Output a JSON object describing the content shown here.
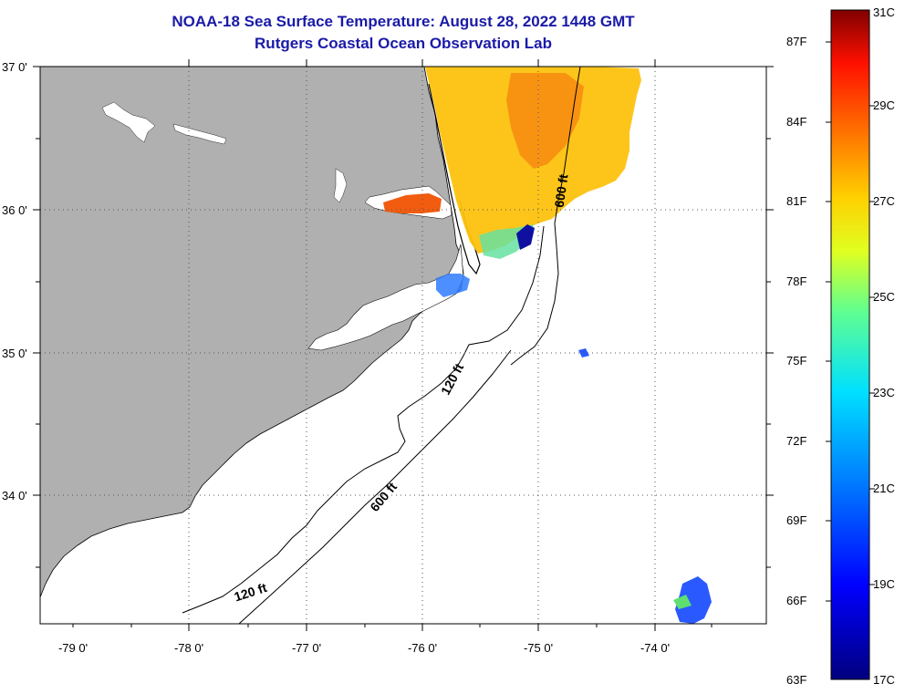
{
  "title": {
    "line1": "NOAA-18 Sea Surface Temperature:  August 28, 2022 1448 GMT",
    "line2": "Rutgers Coastal Ocean Observation Lab"
  },
  "colors": {
    "land": "#b0b0b0",
    "ocean": "#ffffff",
    "title": "#1a1aa8",
    "grid": "#555555"
  },
  "lat_labels": [
    "37 0'",
    "36 0'",
    "35 0'",
    "34 0'"
  ],
  "lon_labels": [
    "-79 0'",
    "-78 0'",
    "-77 0'",
    "-76 0'",
    "-75 0'",
    "-74 0'"
  ],
  "contours": {
    "c600_north": "600 ft",
    "c120": "120 ft",
    "c600_south": "600 ft",
    "c120_south": "120 ft"
  },
  "colorbar": {
    "fahrenheit": [
      "87F",
      "84F",
      "81F",
      "78F",
      "75F",
      "72F",
      "69F",
      "66F",
      "63F"
    ],
    "celsius": [
      "31C",
      "29C",
      "27C",
      "25C",
      "23C",
      "21C",
      "19C",
      "17C"
    ]
  }
}
